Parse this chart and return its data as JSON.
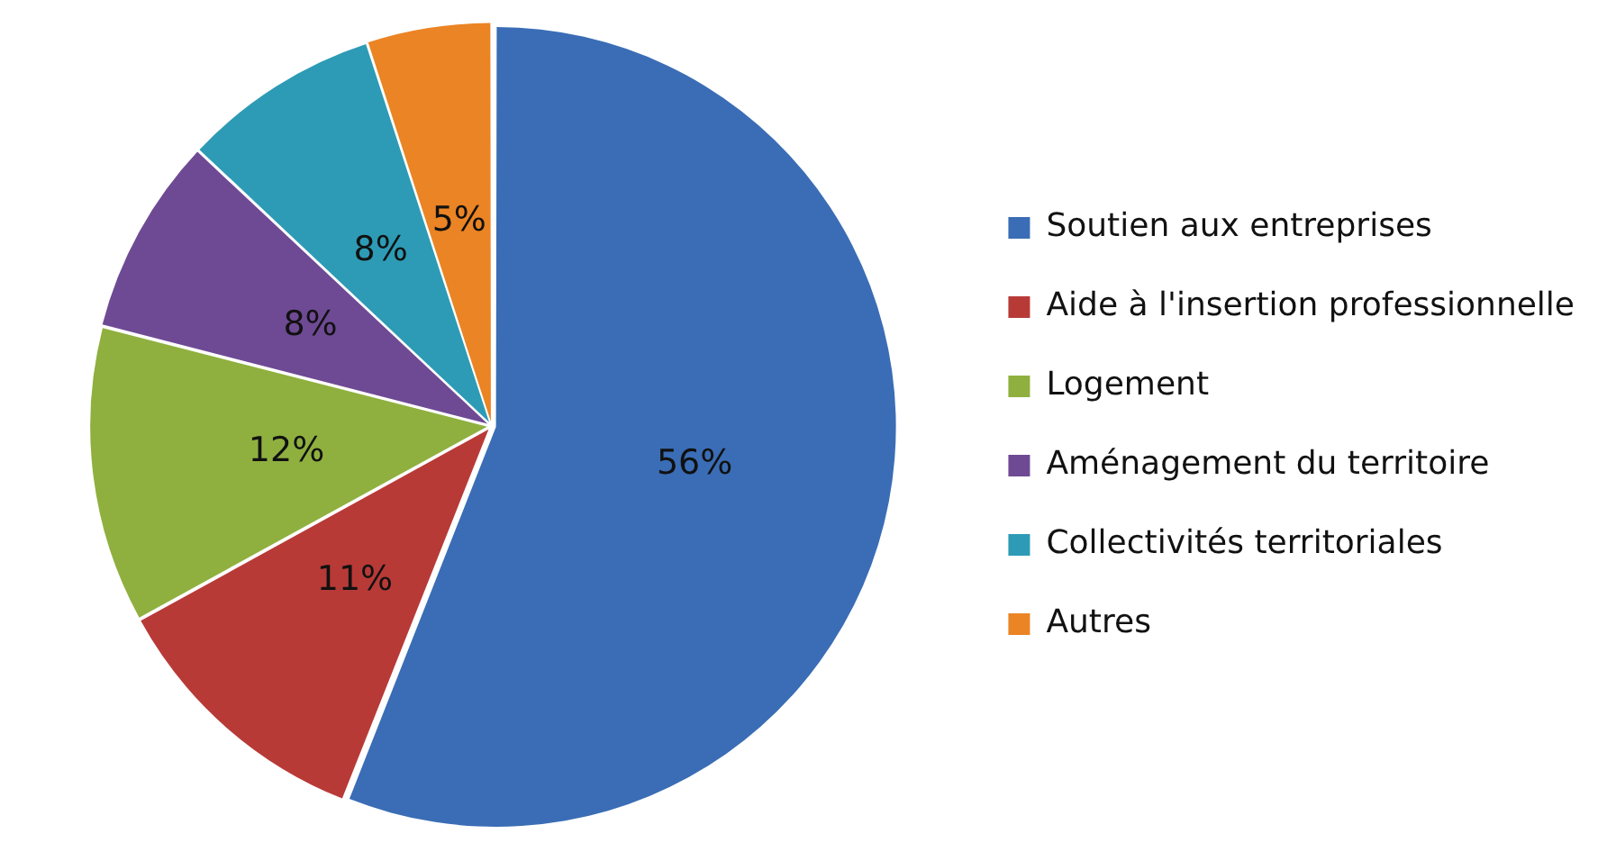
{
  "chart_data": {
    "type": "pie",
    "categories": [
      "Soutien aux entreprises",
      "Aide à l'insertion professionnelle",
      "Logement",
      "Aménagement du territoire",
      "Collectivités territoriales",
      "Autres"
    ],
    "values": [
      56,
      11,
      12,
      8,
      8,
      5
    ],
    "value_labels": [
      "56%",
      "11%",
      "12%",
      "8%",
      "8%",
      "5%"
    ],
    "colors": [
      "#3a6db5",
      "#b83a37",
      "#8fb03f",
      "#6e4a94",
      "#2d9bb5",
      "#eb8424"
    ],
    "legend": "right"
  }
}
